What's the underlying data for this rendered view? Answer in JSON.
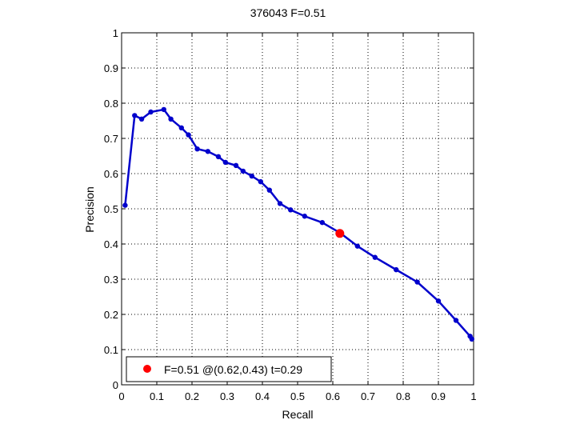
{
  "chart_data": {
    "type": "line",
    "title": "376043 F=0.51",
    "xlabel": "Recall",
    "ylabel": "Precision",
    "xlim": [
      0,
      1
    ],
    "ylim": [
      0,
      1
    ],
    "grid": true,
    "xticks": [
      "0",
      "0.1",
      "0.2",
      "0.3",
      "0.4",
      "0.5",
      "0.6",
      "0.7",
      "0.8",
      "0.9",
      "1"
    ],
    "yticks": [
      "0",
      "0.1",
      "0.2",
      "0.3",
      "0.4",
      "0.5",
      "0.6",
      "0.7",
      "0.8",
      "0.9",
      "1"
    ],
    "series": [
      {
        "color": "#0000cc",
        "marker": "dot",
        "x": [
          0.01,
          0.037,
          0.057,
          0.083,
          0.12,
          0.14,
          0.17,
          0.19,
          0.215,
          0.245,
          0.275,
          0.295,
          0.325,
          0.345,
          0.37,
          0.395,
          0.42,
          0.45,
          0.48,
          0.52,
          0.57,
          0.62,
          0.67,
          0.72,
          0.78,
          0.84,
          0.9,
          0.95,
          0.99,
          0.995
        ],
        "y": [
          0.51,
          0.765,
          0.755,
          0.775,
          0.782,
          0.755,
          0.73,
          0.71,
          0.67,
          0.663,
          0.648,
          0.632,
          0.623,
          0.607,
          0.593,
          0.577,
          0.553,
          0.515,
          0.497,
          0.479,
          0.461,
          0.432,
          0.394,
          0.362,
          0.327,
          0.292,
          0.238,
          0.183,
          0.138,
          0.13
        ]
      }
    ],
    "highlight": {
      "x": 0.62,
      "y": 0.43,
      "color": "#ff0000"
    },
    "legend": {
      "position": "bottom-left",
      "label": "F=0.51 @(0.62,0.43) t=0.29"
    }
  }
}
